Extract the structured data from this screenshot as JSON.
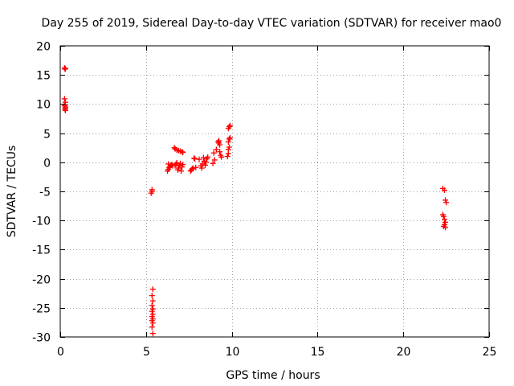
{
  "chart_data": {
    "type": "scatter",
    "title": "Day 255 of 2019, Sidereal Day-to-day VTEC variation (SDTVAR) for receiver mao0",
    "xlabel": "GPS time / hours",
    "ylabel": "SDTVAR / TECUs",
    "xlim": [
      0,
      25
    ],
    "ylim": [
      -30,
      20
    ],
    "xticks": [
      0,
      5,
      10,
      15,
      20,
      25
    ],
    "yticks": [
      -30,
      -25,
      -20,
      -15,
      -10,
      -5,
      0,
      5,
      10,
      15,
      20
    ],
    "xtick_labels": [
      "0",
      "5",
      "10",
      "15",
      "20",
      "25"
    ],
    "ytick_labels": [
      "-30",
      "-25",
      "-20",
      "-15",
      "-10",
      "-5",
      "0",
      "5",
      "10",
      "15",
      "20"
    ],
    "grid": true,
    "marker": "plus",
    "color": "#ff0000",
    "points": [
      [
        0.25,
        16.2
      ],
      [
        0.28,
        16.0
      ],
      [
        0.3,
        16.1
      ],
      [
        0.25,
        10.9
      ],
      [
        0.3,
        10.3
      ],
      [
        0.3,
        9.9
      ],
      [
        0.25,
        9.7
      ],
      [
        0.3,
        9.5
      ],
      [
        0.3,
        9.3
      ],
      [
        0.28,
        9.1
      ],
      [
        0.3,
        8.9
      ],
      [
        5.35,
        -4.7
      ],
      [
        5.35,
        -5.0
      ],
      [
        5.3,
        -5.3
      ],
      [
        5.4,
        -21.8
      ],
      [
        5.35,
        -22.9
      ],
      [
        5.4,
        -23.8
      ],
      [
        5.35,
        -24.6
      ],
      [
        5.4,
        -25.2
      ],
      [
        5.35,
        -25.6
      ],
      [
        5.4,
        -26.1
      ],
      [
        5.35,
        -26.5
      ],
      [
        5.4,
        -26.9
      ],
      [
        5.35,
        -27.2
      ],
      [
        5.4,
        -27.6
      ],
      [
        5.35,
        -28.3
      ],
      [
        5.4,
        -29.4
      ],
      [
        6.25,
        -1.5
      ],
      [
        6.3,
        -1.2
      ],
      [
        6.35,
        -0.9
      ],
      [
        6.4,
        -0.7
      ],
      [
        6.45,
        -0.5
      ],
      [
        6.5,
        -0.4
      ],
      [
        6.55,
        -0.6
      ],
      [
        6.3,
        -0.3
      ],
      [
        6.65,
        2.5
      ],
      [
        6.7,
        2.3
      ],
      [
        6.8,
        2.1
      ],
      [
        6.9,
        2.0
      ],
      [
        7.0,
        1.9
      ],
      [
        7.1,
        1.8
      ],
      [
        7.15,
        1.7
      ],
      [
        6.7,
        -0.6
      ],
      [
        6.75,
        -0.3
      ],
      [
        6.8,
        -0.1
      ],
      [
        6.85,
        -1.3
      ],
      [
        6.9,
        -1.0
      ],
      [
        6.95,
        -0.5
      ],
      [
        7.0,
        -0.2
      ],
      [
        7.05,
        -1.5
      ],
      [
        7.1,
        -0.8
      ],
      [
        7.15,
        -0.4
      ],
      [
        7.6,
        -1.5
      ],
      [
        7.65,
        -1.3
      ],
      [
        7.7,
        -1.1
      ],
      [
        7.75,
        -1.0
      ],
      [
        7.8,
        0.7
      ],
      [
        7.85,
        0.6
      ],
      [
        7.9,
        -0.9
      ],
      [
        8.1,
        0.5
      ],
      [
        8.2,
        -0.6
      ],
      [
        8.25,
        -1.0
      ],
      [
        8.3,
        -0.3
      ],
      [
        8.35,
        0.8
      ],
      [
        8.4,
        0.2
      ],
      [
        8.45,
        -0.5
      ],
      [
        8.5,
        0.0
      ],
      [
        8.55,
        0.6
      ],
      [
        8.6,
        0.9
      ],
      [
        8.9,
        -0.2
      ],
      [
        8.95,
        1.6
      ],
      [
        9.0,
        0.4
      ],
      [
        9.1,
        2.2
      ],
      [
        9.2,
        3.5
      ],
      [
        9.25,
        3.3
      ],
      [
        9.3,
        3.0
      ],
      [
        9.3,
        1.8
      ],
      [
        9.35,
        1.2
      ],
      [
        9.4,
        0.9
      ],
      [
        9.25,
        3.7
      ],
      [
        9.75,
        1.0
      ],
      [
        9.8,
        1.5
      ],
      [
        9.8,
        2.2
      ],
      [
        9.85,
        2.6
      ],
      [
        9.8,
        3.5
      ],
      [
        9.85,
        4.0
      ],
      [
        9.9,
        4.2
      ],
      [
        9.8,
        5.8
      ],
      [
        9.85,
        6.1
      ],
      [
        9.9,
        6.3
      ],
      [
        22.3,
        -4.5
      ],
      [
        22.4,
        -4.8
      ],
      [
        22.45,
        -6.5
      ],
      [
        22.5,
        -6.9
      ],
      [
        22.3,
        -9.0
      ],
      [
        22.35,
        -9.3
      ],
      [
        22.4,
        -9.8
      ],
      [
        22.45,
        -10.3
      ],
      [
        22.4,
        -10.7
      ],
      [
        22.35,
        -11.0
      ],
      [
        22.45,
        -11.2
      ]
    ]
  }
}
